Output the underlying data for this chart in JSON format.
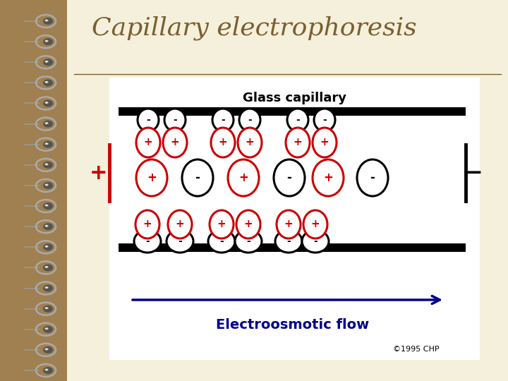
{
  "bg_outer": "#a08050",
  "bg_notebook": "#f5f0dc",
  "bg_diagram": "#ffffff",
  "title": "Capillary electrophoresis",
  "title_color": "#7a6030",
  "title_fontsize": 26,
  "glass_capillary_label": "Glass capillary",
  "electroosmotic_label": "Electroosmotic flow",
  "copyright": "©1995 CHP",
  "red": "#cc0000",
  "black": "#000000",
  "blue_arrow": "#00008b",
  "spiral_color": "#888880",
  "spiral_ring_color": "#aaaaaa"
}
